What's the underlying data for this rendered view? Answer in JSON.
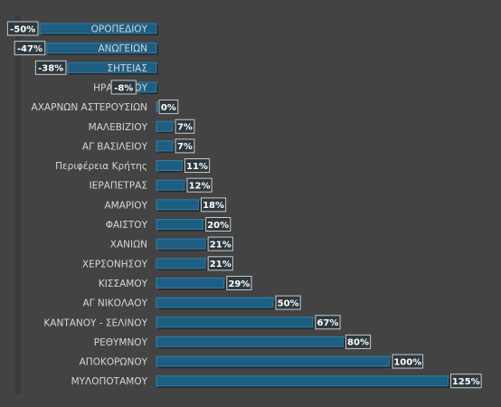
{
  "chart_data": {
    "type": "bar",
    "orientation": "horizontal",
    "categories": [
      "ΟΡΟΠΕΔΙΟΥ",
      "ΑΝΩΓΕΙΩΝ",
      "ΣΗΤΕΙΑΣ",
      "ΗΡΑΚΛΕΙΟΥ",
      "ΑΧΑΡΝΩΝ ΑΣΤΕΡΟΥΣΙΩΝ",
      "ΜΑΛΕΒΙΖΙΟΥ",
      "ΑΓ ΒΑΣΙΛΕΙΟΥ",
      "Περιφέρεια Κρήτης",
      "ΙΕΡΑΠΕΤΡΑΣ",
      "ΑΜΑΡΙΟΥ",
      "ΦΑΙΣΤΟΥ",
      "ΧΑΝΙΩΝ",
      "ΧΕΡΣΟΝΗΣΟΥ",
      "ΚΙΣΣΑΜΟΥ",
      "ΑΓ ΝΙΚΟΛΑΟΥ",
      "ΚΑΝΤΑΝΟΥ - ΣΕΛΙΝΟΥ",
      "ΡΕΘΥΜΝΟΥ",
      "ΑΠΟΚΟΡΩΝΟΥ",
      "ΜΥΛΟΠΟΤΑΜΟΥ"
    ],
    "values": [
      -50,
      -47,
      -38,
      -8,
      0,
      7,
      7,
      11,
      12,
      18,
      20,
      21,
      21,
      29,
      50,
      67,
      80,
      100,
      125
    ],
    "data_labels": [
      "-50%",
      "-47%",
      "-38%",
      "-8%",
      "0%",
      "7%",
      "7%",
      "11%",
      "12%",
      "18%",
      "20%",
      "21%",
      "21%",
      "29%",
      "50%",
      "67%",
      "80%",
      "100%",
      "125%"
    ],
    "xlim": [
      -50,
      125
    ],
    "grid": false,
    "legend": "none",
    "colors": {
      "bar": "#1d5e82",
      "bar_edge": "#2f7fa8",
      "background": "#434343",
      "label_box": "#2f3a40"
    }
  }
}
